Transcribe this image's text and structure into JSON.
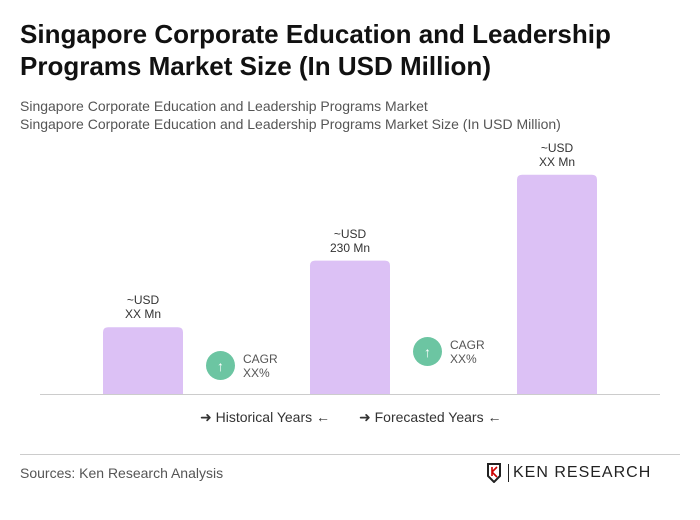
{
  "title": "Singapore Corporate Education and Leadership Programs Market Size (In USD Million)",
  "subtitle_1": "Singapore Corporate Education and Leadership Programs Market",
  "subtitle_2": "Singapore Corporate Education and Leadership Programs Market Size (In USD Million)",
  "chart_data": {
    "type": "bar",
    "categories": [
      "",
      "",
      ""
    ],
    "values": [
      115,
      230,
      378
    ],
    "data_labels": [
      [
        "~USD",
        "XX Mn"
      ],
      [
        "~USD",
        "230 Mn"
      ],
      [
        "~USD",
        "XX Mn"
      ]
    ],
    "bar_color": "#dcc1f5",
    "cagr": [
      {
        "label": "CAGR",
        "value": "XX%"
      },
      {
        "label": "CAGR",
        "value": "XX%"
      }
    ],
    "cagr_color": "#6cc5a2",
    "legend": [
      "Historical Years",
      "Forecasted Years"
    ]
  },
  "footer": {
    "sources": "Sources: Ken Research Analysis",
    "logo": "KEN RESEARCH"
  }
}
